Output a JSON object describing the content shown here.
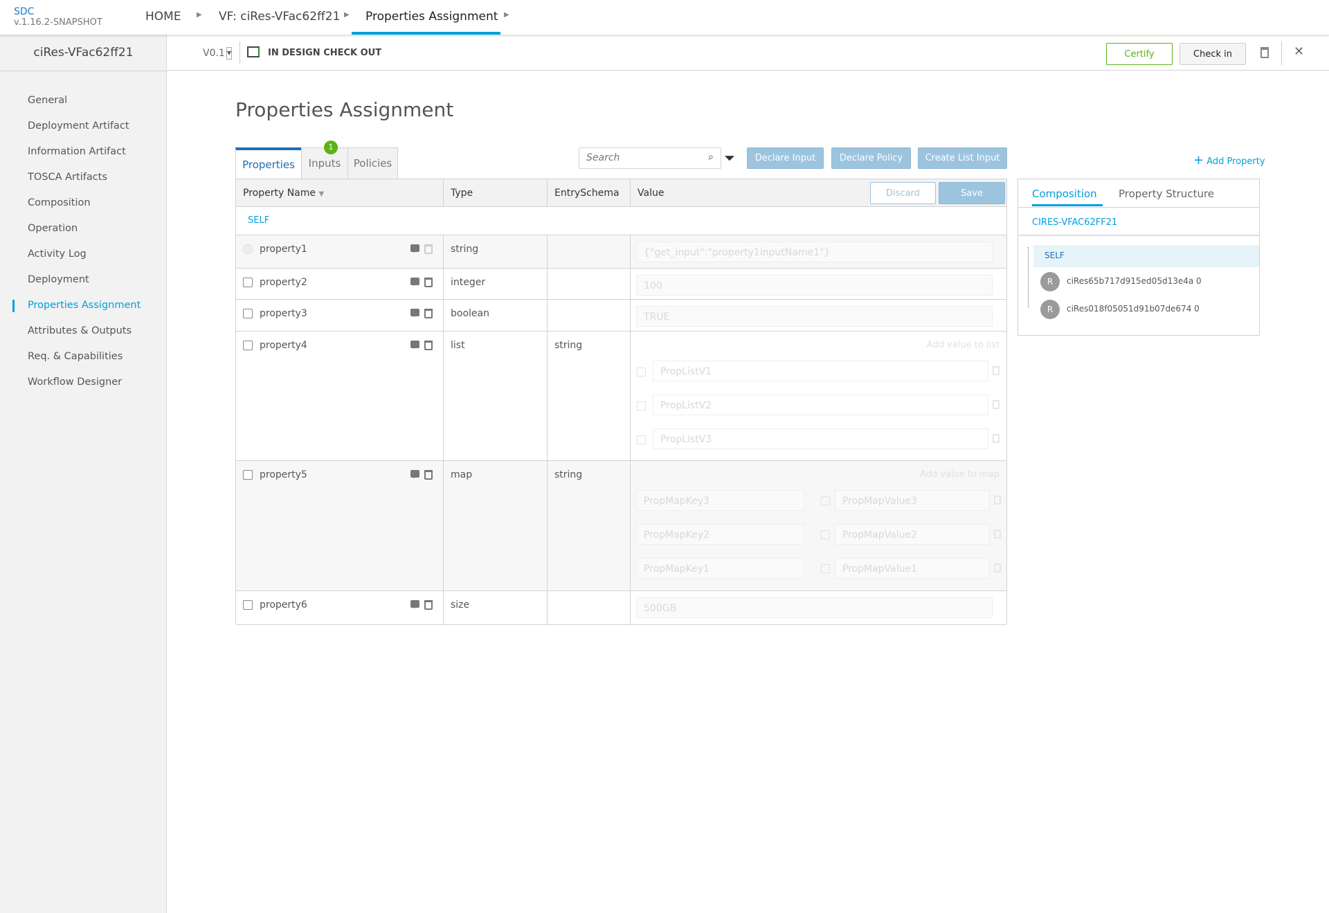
{
  "app": {
    "name": "SDC",
    "version": "v.1.16.2-SNAPSHOT"
  },
  "breadcrumb": [
    "HOME",
    "VF: ciRes-VFac62ff21",
    "Properties Assignment"
  ],
  "resource": {
    "name": "ciRes-VFac62ff21",
    "version": "V0.1",
    "state": "IN DESIGN CHECK OUT"
  },
  "actions": {
    "certify": "Certify",
    "checkin": "Check in"
  },
  "colors": {
    "accent": "#009fdb",
    "certify": "#5bb318",
    "badge": "#5bb318",
    "button_disabled": "#9cc4de"
  },
  "sidebar": [
    "General",
    "Deployment Artifact",
    "Information Artifact",
    "TOSCA Artifacts",
    "Composition",
    "Operation",
    "Activity Log",
    "Deployment",
    "Properties Assignment",
    "Attributes & Outputs",
    "Req. & Capabilities",
    "Workflow Designer"
  ],
  "sidebar_active": "Properties Assignment",
  "page_title": "Properties Assignment",
  "tabs": [
    {
      "label": "Properties"
    },
    {
      "label": "Inputs",
      "badge": "1"
    },
    {
      "label": "Policies"
    }
  ],
  "search": {
    "placeholder": "Search"
  },
  "toolbar": {
    "declare_input": "Declare Input",
    "declare_policy": "Declare Policy",
    "create_list_input": "Create List Input",
    "add_property": "Add Property"
  },
  "table": {
    "headers": [
      "Property Name",
      "Type",
      "EntrySchema",
      "Value"
    ],
    "discard": "Discard",
    "save": "Save",
    "group": "SELF",
    "add_list": "Add value to list",
    "add_map": "Add value to map",
    "rows": [
      {
        "name": "property1",
        "type": "string",
        "schema": "",
        "value": "{\"get_input\":\"property1inputName1\"}"
      },
      {
        "name": "property2",
        "type": "integer",
        "schema": "",
        "value": "100"
      },
      {
        "name": "property3",
        "type": "boolean",
        "schema": "",
        "value": "TRUE"
      },
      {
        "name": "property4",
        "type": "list",
        "schema": "string",
        "list": [
          "PropListV1",
          "PropListV2",
          "PropListV3"
        ]
      },
      {
        "name": "property5",
        "type": "map",
        "schema": "string",
        "map": [
          [
            "PropMapKey3",
            "PropMapValue3"
          ],
          [
            "PropMapKey2",
            "PropMapValue2"
          ],
          [
            "PropMapKey1",
            "PropMapValue1"
          ]
        ]
      },
      {
        "name": "property6",
        "type": "size",
        "schema": "",
        "value": "500GB"
      }
    ]
  },
  "right": {
    "tabs": [
      "Composition",
      "Property Structure"
    ],
    "root": "CIRES-VFAC62FF21",
    "self": "SELF",
    "instances": [
      {
        "avatar": "R",
        "name": "ciRes65b717d915ed05d13e4a 0"
      },
      {
        "avatar": "R",
        "name": "ciRes018f05051d91b07de674 0"
      }
    ]
  }
}
